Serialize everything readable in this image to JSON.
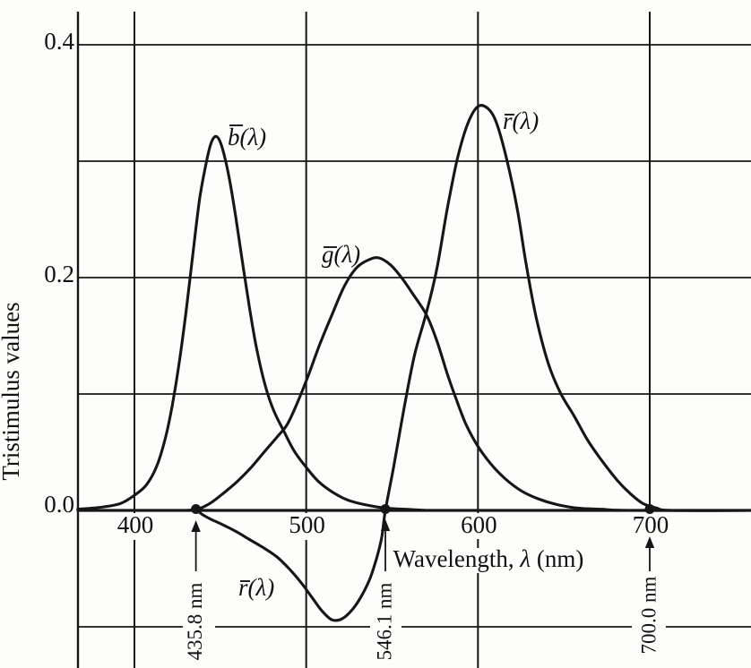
{
  "figure": {
    "kind": "textbook-line-chart",
    "background": "#fdfdfb",
    "line_color": "#161616"
  },
  "chart_data": {
    "type": "line",
    "title": "",
    "xlabel": "Wavelength, λ (nm)",
    "xlabel_parts": {
      "pre": "Wavelength, ",
      "lambda": "λ",
      "post": " (nm)"
    },
    "ylabel": "Tristimulus values",
    "xlim": [
      367,
      759
    ],
    "ylim": [
      -0.134,
      0.428
    ],
    "grid": true,
    "grid_y_values": [
      0.4,
      0.3,
      0.2,
      0.1,
      0.0,
      -0.1
    ],
    "x_ticks": [
      {
        "value": 400,
        "label": "400"
      },
      {
        "value": 500,
        "label": "500"
      },
      {
        "value": 600,
        "label": "600"
      },
      {
        "value": 700,
        "label": "700"
      }
    ],
    "y_ticks": [
      {
        "value": 0.4,
        "label": "0.4"
      },
      {
        "value": 0.2,
        "label": "0.2"
      },
      {
        "value": 0.0,
        "label": "0.0"
      }
    ],
    "series": [
      {
        "id": "b_bar",
        "label_base": "b",
        "label_args": "(λ)",
        "points": [
          [
            367,
            0.001
          ],
          [
            382,
            0.003
          ],
          [
            392,
            0.006
          ],
          [
            400,
            0.013
          ],
          [
            407,
            0.022
          ],
          [
            413,
            0.038
          ],
          [
            418,
            0.062
          ],
          [
            422,
            0.09
          ],
          [
            426,
            0.126
          ],
          [
            430,
            0.17
          ],
          [
            434,
            0.22
          ],
          [
            438,
            0.268
          ],
          [
            442,
            0.3
          ],
          [
            445,
            0.317
          ],
          [
            448,
            0.321
          ],
          [
            451,
            0.312
          ],
          [
            455,
            0.287
          ],
          [
            459,
            0.252
          ],
          [
            463,
            0.212
          ],
          [
            467,
            0.174
          ],
          [
            471,
            0.14
          ],
          [
            476,
            0.108
          ],
          [
            481,
            0.086
          ],
          [
            487,
            0.068
          ],
          [
            493,
            0.051
          ],
          [
            500,
            0.037
          ],
          [
            507,
            0.025
          ],
          [
            515,
            0.016
          ],
          [
            524,
            0.009
          ],
          [
            534,
            0.005
          ],
          [
            546,
            0.002
          ],
          [
            558,
            0.001
          ],
          [
            570,
            0.0
          ]
        ]
      },
      {
        "id": "g_bar",
        "label_base": "g",
        "label_args": "(λ)",
        "points": [
          [
            435.8,
            0.0
          ],
          [
            444,
            0.006
          ],
          [
            452,
            0.015
          ],
          [
            460,
            0.025
          ],
          [
            468,
            0.037
          ],
          [
            476,
            0.051
          ],
          [
            483,
            0.063
          ],
          [
            489,
            0.074
          ],
          [
            495,
            0.093
          ],
          [
            501,
            0.115
          ],
          [
            508,
            0.143
          ],
          [
            515,
            0.168
          ],
          [
            522,
            0.192
          ],
          [
            529,
            0.208
          ],
          [
            536,
            0.215
          ],
          [
            542,
            0.217
          ],
          [
            549,
            0.211
          ],
          [
            556,
            0.199
          ],
          [
            563,
            0.184
          ],
          [
            570,
            0.168
          ],
          [
            576,
            0.146
          ],
          [
            582,
            0.118
          ],
          [
            587,
            0.097
          ],
          [
            593,
            0.074
          ],
          [
            600,
            0.055
          ],
          [
            608,
            0.039
          ],
          [
            616,
            0.027
          ],
          [
            625,
            0.017
          ],
          [
            635,
            0.01
          ],
          [
            646,
            0.005
          ],
          [
            658,
            0.002
          ],
          [
            672,
            0.001
          ],
          [
            688,
            0.0
          ],
          [
            759,
            0.0
          ]
        ]
      },
      {
        "id": "r_bar",
        "label_base": "r",
        "label_args": "(λ)",
        "points": [
          [
            367,
            0.0
          ],
          [
            420,
            0.0
          ],
          [
            430,
            0.0
          ],
          [
            435.8,
            0.0
          ],
          [
            440,
            -0.004
          ],
          [
            445,
            -0.008
          ],
          [
            451,
            -0.012
          ],
          [
            459,
            -0.018
          ],
          [
            467,
            -0.025
          ],
          [
            475,
            -0.032
          ],
          [
            483,
            -0.04
          ],
          [
            490,
            -0.05
          ],
          [
            497,
            -0.062
          ],
          [
            503,
            -0.074
          ],
          [
            509,
            -0.086
          ],
          [
            515,
            -0.094
          ],
          [
            521,
            -0.093
          ],
          [
            527,
            -0.085
          ],
          [
            532,
            -0.074
          ],
          [
            537,
            -0.059
          ],
          [
            541,
            -0.041
          ],
          [
            544,
            -0.023
          ],
          [
            546.1,
            0.0
          ],
          [
            551,
            0.038
          ],
          [
            557,
            0.088
          ],
          [
            563,
            0.133
          ],
          [
            570,
            0.17
          ],
          [
            576,
            0.207
          ],
          [
            582,
            0.258
          ],
          [
            588,
            0.302
          ],
          [
            594,
            0.332
          ],
          [
            600,
            0.347
          ],
          [
            606,
            0.345
          ],
          [
            611,
            0.332
          ],
          [
            617,
            0.3
          ],
          [
            623,
            0.258
          ],
          [
            628,
            0.212
          ],
          [
            634,
            0.165
          ],
          [
            641,
            0.126
          ],
          [
            648,
            0.101
          ],
          [
            656,
            0.081
          ],
          [
            664,
            0.06
          ],
          [
            672,
            0.043
          ],
          [
            681,
            0.026
          ],
          [
            689,
            0.014
          ],
          [
            696,
            0.006
          ],
          [
            704,
            0.002
          ],
          [
            713,
            0.0
          ],
          [
            759,
            0.0
          ]
        ]
      }
    ],
    "markers": [
      {
        "wavelength": 435.8,
        "value": 0.0,
        "label": "435.8 nm"
      },
      {
        "wavelength": 546.1,
        "value": 0.0,
        "label": "546.1 nm"
      },
      {
        "wavelength": 700.0,
        "value": 0.0,
        "label": "700.0 nm"
      }
    ],
    "legend_position": "none"
  }
}
